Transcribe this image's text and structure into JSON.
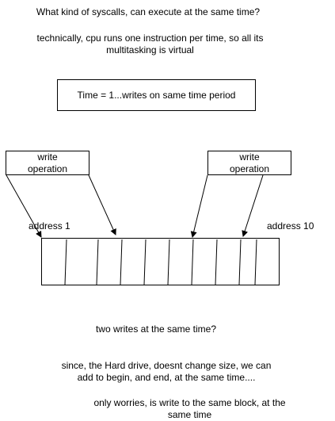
{
  "title": "What kind of syscalls, can execute at the same time?",
  "note_cpu": {
    "line1": "technically, cpu runs one instruction per time, so all its",
    "line2": "multitasking is virtual"
  },
  "time_box": "Time = 1...writes on same time period",
  "write_ops": [
    {
      "line1": "write",
      "line2": "operation"
    },
    {
      "line1": "write",
      "line2": "operation"
    }
  ],
  "address_start": "address 1",
  "address_end": "address 10",
  "question": "two writes at the same time?",
  "note_drive": {
    "line1": "since, the Hard drive, doesnt change size, we can",
    "line2": "add to begin, and end, at the same time...."
  },
  "note_worry": {
    "line1": "only worries, is write to the same block, at the",
    "line2": "same time"
  },
  "colors": {
    "stroke": "#000000",
    "background": "#ffffff"
  }
}
